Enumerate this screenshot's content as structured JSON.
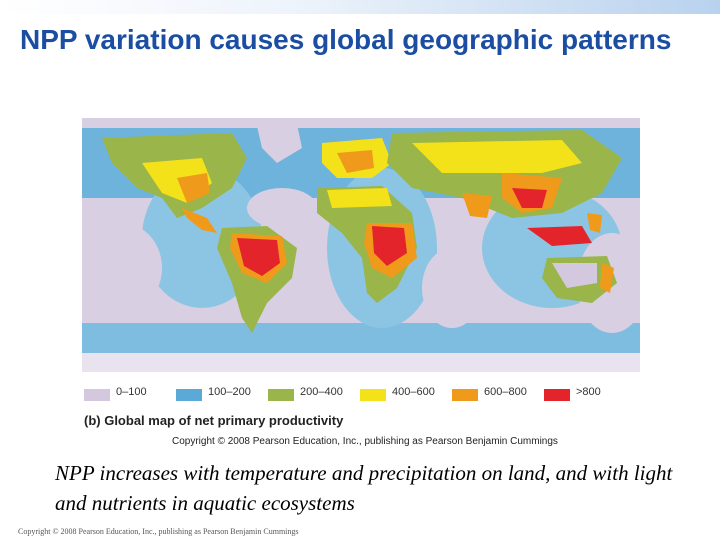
{
  "slide": {
    "title": "NPP variation causes global geographic patterns",
    "body": "NPP increases with temperature and precipitation on land, and with light and nutrients in aquatic ecosystems",
    "footer": "Copyright © 2008 Pearson Education, Inc., publishing as Pearson Benjamin Cummings"
  },
  "figure": {
    "caption": "(b) Global map of net primary productivity",
    "copyright": "Copyright © 2008 Pearson Education, Inc., publishing as Pearson Benjamin Cummings",
    "legend": [
      {
        "label": "0–100",
        "color": "#d4c8de"
      },
      {
        "label": "100–200",
        "color": "#5aa9d6"
      },
      {
        "label": "200–400",
        "color": "#9ab54a"
      },
      {
        "label": "400–600",
        "color": "#f3e11a"
      },
      {
        "label": "600–800",
        "color": "#f09a1c"
      },
      {
        "label": ">800",
        "color": "#e3242b"
      }
    ]
  }
}
